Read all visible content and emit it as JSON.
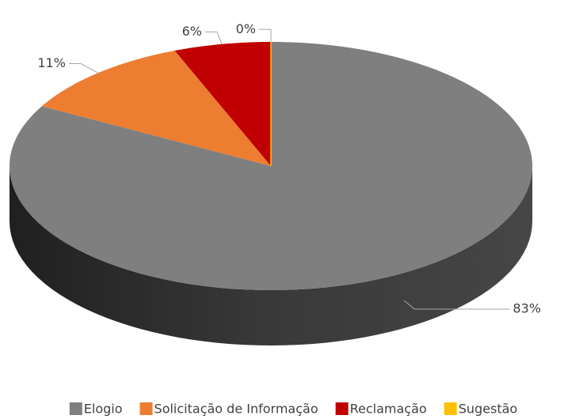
{
  "chart_data": {
    "type": "pie",
    "categories": [
      "Elogio",
      "Solicitação de Informação",
      "Reclamação",
      "Sugestão"
    ],
    "values": [
      83,
      11,
      6,
      0
    ],
    "value_labels": [
      "83%",
      "11%",
      "6%",
      "0%"
    ],
    "colors": [
      "#7f7f7f",
      "#ed7d31",
      "#c00000",
      "#ffc000"
    ],
    "legend": "bottom"
  }
}
